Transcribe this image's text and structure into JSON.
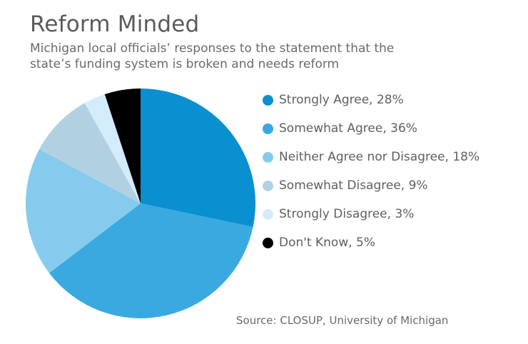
{
  "chart_data": {
    "type": "pie",
    "title": "Reform Minded",
    "subtitle_lines": [
      "Michigan local officials’ responses to the statement that the",
      "state’s funding system is broken and needs reform"
    ],
    "slices": [
      {
        "label": "Strongly Agree, 28%",
        "value": 28,
        "color": "#0a8fd0"
      },
      {
        "label": "Somewhat Agree, 36%",
        "value": 36,
        "color": "#3aa9e0"
      },
      {
        "label": "Neither Agree nor Disagree, 18%",
        "value": 18,
        "color": "#86cbed"
      },
      {
        "label": "Somewhat Disagree, 9%",
        "value": 9,
        "color": "#b1d1e3"
      },
      {
        "label": "Strongly Disagree, 3%",
        "value": 3,
        "color": "#d4ecfa"
      },
      {
        "label": "Don't Know, 5%",
        "value": 5,
        "color": "#000000"
      }
    ],
    "start_angle": "12 o'clock",
    "direction": "clockwise",
    "legend_position": "right",
    "source": "Source: CLOSUP, University of Michigan"
  }
}
